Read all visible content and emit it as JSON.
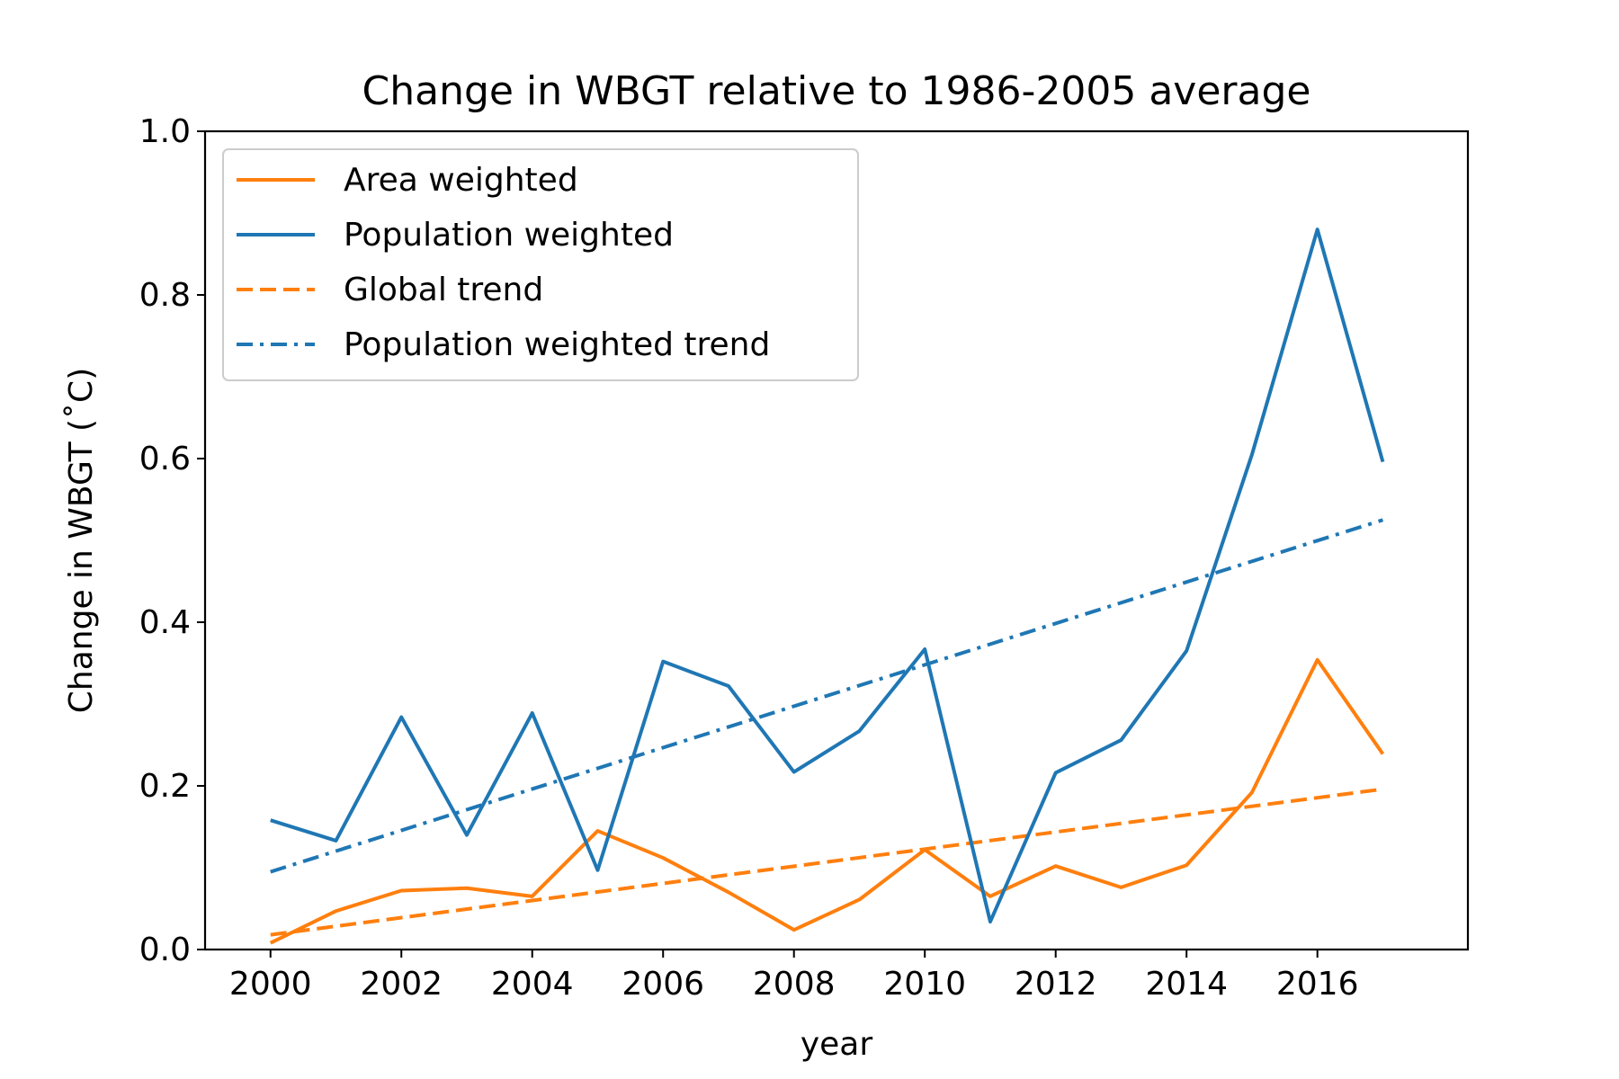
{
  "chart_data": {
    "type": "line",
    "title": "Change in WBGT relative to 1986-2005 average",
    "xlabel": "year",
    "ylabel": "Change in WBGT (˚C)",
    "xlim": [
      1999.0,
      2018.3
    ],
    "ylim": [
      0.0,
      1.0
    ],
    "xticks": [
      2000,
      2002,
      2004,
      2006,
      2008,
      2010,
      2012,
      2014,
      2016
    ],
    "yticks": [
      "0.0",
      "0.2",
      "0.4",
      "0.6",
      "0.8",
      "1.0"
    ],
    "grid": false,
    "legend_position": "top-left",
    "x": [
      2000,
      2001,
      2002,
      2003,
      2004,
      2005,
      2006,
      2007,
      2008,
      2009,
      2010,
      2011,
      2012,
      2013,
      2014,
      2015,
      2016,
      2017
    ],
    "series": [
      {
        "name": "Area weighted",
        "color": "#ff7f0e",
        "style": "solid",
        "values": [
          0.008,
          0.047,
          0.072,
          0.075,
          0.065,
          0.145,
          0.112,
          0.07,
          0.024,
          0.061,
          0.122,
          0.065,
          0.102,
          0.076,
          0.103,
          0.192,
          0.354,
          0.239
        ]
      },
      {
        "name": "Population weighted",
        "color": "#1f77b4",
        "style": "solid",
        "values": [
          0.158,
          0.133,
          0.284,
          0.14,
          0.289,
          0.097,
          0.352,
          0.322,
          0.217,
          0.267,
          0.367,
          0.034,
          0.216,
          0.256,
          0.365,
          0.605,
          0.88,
          0.596
        ]
      },
      {
        "name": "Global trend",
        "color": "#ff7f0e",
        "style": "dashed",
        "x": [
          2000,
          2017
        ],
        "values": [
          0.018,
          0.196
        ]
      },
      {
        "name": "Population weighted trend",
        "color": "#1f77b4",
        "style": "dashdot",
        "x": [
          2000,
          2017
        ],
        "values": [
          0.095,
          0.525
        ]
      }
    ]
  }
}
